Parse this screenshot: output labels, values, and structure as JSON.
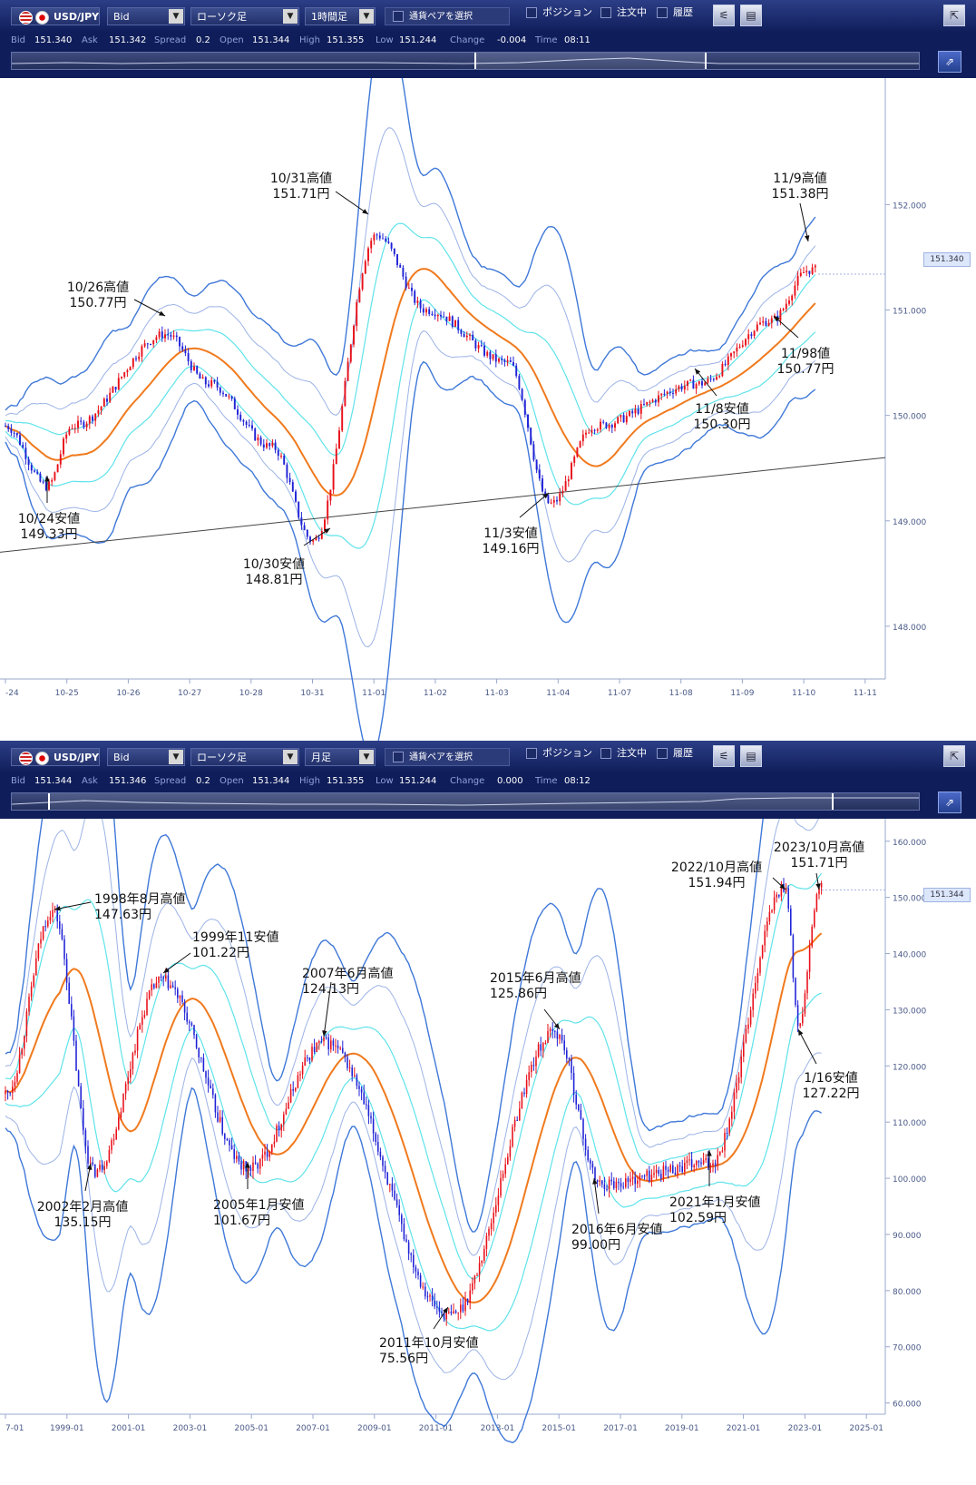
{
  "panels": [
    {
      "pair": "USD/JPY",
      "price_type": "Bid",
      "chart_type": "ローソク足",
      "timeframe": "1時間足",
      "select_pair_label": "通貨ペアを選択",
      "position_label": "ポジション",
      "order_label": "注文中",
      "history_label": "履歴",
      "info": [
        {
          "label": "Bid",
          "value": "151.340"
        },
        {
          "label": "Ask",
          "value": "151.342"
        },
        {
          "label": "Spread",
          "value": "0.2"
        },
        {
          "label": "Open",
          "value": "151.344"
        },
        {
          "label": "High",
          "value": "151.355"
        },
        {
          "label": "Low",
          "value": "151.244"
        },
        {
          "label": "Change",
          "value": "-0.004"
        },
        {
          "label": "Time",
          "value": "08:11"
        }
      ],
      "current_price_label": "151.340"
    },
    {
      "pair": "USD/JPY",
      "price_type": "Bid",
      "chart_type": "ローソク足",
      "timeframe": "月足",
      "select_pair_label": "通貨ペアを選択",
      "position_label": "ポジション",
      "order_label": "注文中",
      "history_label": "履歴",
      "info": [
        {
          "label": "Bid",
          "value": "151.344"
        },
        {
          "label": "Ask",
          "value": "151.346"
        },
        {
          "label": "Spread",
          "value": "0.2"
        },
        {
          "label": "Open",
          "value": "151.344"
        },
        {
          "label": "High",
          "value": "151.355"
        },
        {
          "label": "Low",
          "value": "151.244"
        },
        {
          "label": "Change",
          "value": "0.000"
        },
        {
          "label": "Time",
          "value": "08:12"
        }
      ],
      "current_price_label": "151.344"
    }
  ],
  "colors": {
    "toolbar": "#1a2a6c",
    "candle_up": "#e8101a",
    "candle_down": "#1f22d6",
    "ma": "#f07a1e",
    "band1": "#5fe3ea",
    "band2": "#9cb3e6",
    "band3": "#3f78d8"
  },
  "chart_data": [
    {
      "type": "candlestick",
      "title": "",
      "x_ticks": [
        "-24",
        "10-25",
        "10-26",
        "10-27",
        "10-28",
        "10-31",
        "11-01",
        "11-02",
        "11-03",
        "11-04",
        "11-07",
        "11-08",
        "11-09",
        "11-10",
        "11-11"
      ],
      "y_ticks": [
        "148.000",
        "149.000",
        "150.000",
        "151.000",
        "152.000"
      ],
      "ylim": [
        147.5,
        153.2
      ],
      "current_price": 151.34,
      "trendline": [
        {
          "x": "-24",
          "y": 148.7
        },
        {
          "x": "11-11",
          "y": 149.6
        }
      ],
      "close_path": [
        {
          "x": "-24",
          "y": 149.9
        },
        {
          "x": "10-24",
          "y": 149.33
        },
        {
          "x": "10-25",
          "y": 149.9
        },
        {
          "x": "10-26",
          "y": 150.77
        },
        {
          "x": "10-27",
          "y": 150.3
        },
        {
          "x": "10-28",
          "y": 149.7
        },
        {
          "x": "10-31",
          "y": 148.81
        },
        {
          "x": "11-01",
          "y": 151.71
        },
        {
          "x": "11-02",
          "y": 151.0
        },
        {
          "x": "11-03",
          "y": 150.5
        },
        {
          "x": "11-04",
          "y": 149.16
        },
        {
          "x": "11-07",
          "y": 149.9
        },
        {
          "x": "11-08",
          "y": 150.3
        },
        {
          "x": "11-09",
          "y": 150.9
        },
        {
          "x": "11-10",
          "y": 151.38
        }
      ],
      "annotations": [
        {
          "x": "10-24",
          "y": 149.33,
          "lines": [
            "10/24安値",
            "149.33円"
          ]
        },
        {
          "x": "10-26",
          "y": 150.77,
          "lines": [
            "10/26高値",
            "150.77円"
          ]
        },
        {
          "x": "10-30",
          "y": 148.81,
          "lines": [
            "10/30安値",
            "148.81円"
          ]
        },
        {
          "x": "10-31",
          "y": 151.71,
          "lines": [
            "10/31高値",
            "151.71円"
          ]
        },
        {
          "x": "11-03",
          "y": 149.16,
          "lines": [
            "11/3安値",
            "149.16円"
          ]
        },
        {
          "x": "11-08",
          "y": 150.3,
          "lines": [
            "11/8安値",
            "150.30円"
          ]
        },
        {
          "x": "11-09",
          "y": 150.77,
          "lines": [
            "11/98値",
            "150.77円"
          ]
        },
        {
          "x": "11-09",
          "y": 151.38,
          "lines": [
            "11/9高値",
            "151.38円"
          ]
        }
      ]
    },
    {
      "type": "candlestick",
      "title": "",
      "x_ticks": [
        "7-01",
        "1999-01",
        "2001-01",
        "2003-01",
        "2005-01",
        "2007-01",
        "2009-01",
        "2011-01",
        "2013-01",
        "2015-01",
        "2017-01",
        "2019-01",
        "2021-01",
        "2023-01",
        "2025-01"
      ],
      "y_ticks": [
        "60.000",
        "70.000",
        "80.000",
        "90.000",
        "100.000",
        "110.000",
        "120.000",
        "130.000",
        "140.000",
        "150.000",
        "160.000"
      ],
      "ylim": [
        58,
        164
      ],
      "current_price": 151.344,
      "close_path": [
        {
          "x": "1997-01",
          "y": 115
        },
        {
          "x": "1998-08",
          "y": 147.63
        },
        {
          "x": "1999-11",
          "y": 101.22
        },
        {
          "x": "2002-02",
          "y": 135.15
        },
        {
          "x": "2005-01",
          "y": 101.67
        },
        {
          "x": "2007-06",
          "y": 124.13
        },
        {
          "x": "2011-10",
          "y": 75.56
        },
        {
          "x": "2015-06",
          "y": 125.86
        },
        {
          "x": "2016-06",
          "y": 99.0
        },
        {
          "x": "2021-01",
          "y": 102.59
        },
        {
          "x": "2022-10",
          "y": 151.94
        },
        {
          "x": "2023-01",
          "y": 127.22
        },
        {
          "x": "2023-10",
          "y": 151.71
        }
      ],
      "annotations": [
        {
          "x": "1998-08",
          "y": 147.63,
          "lines": [
            "1998年8月高値",
            "147.63円"
          ]
        },
        {
          "x": "1999-11",
          "y": 101.22,
          "lines": [
            "1999年11安値",
            "101.22円"
          ]
        },
        {
          "x": "2002-02",
          "y": 135.15,
          "lines": [
            "2002年2月高値",
            "135.15円"
          ]
        },
        {
          "x": "2005-01",
          "y": 101.67,
          "lines": [
            "2005年1月安値",
            "101.67円"
          ]
        },
        {
          "x": "2007-06",
          "y": 124.13,
          "lines": [
            "2007年6月高値",
            "124.13円"
          ]
        },
        {
          "x": "2011-10",
          "y": 75.56,
          "lines": [
            "2011年10月安値",
            "75.56円"
          ]
        },
        {
          "x": "2015-06",
          "y": 125.86,
          "lines": [
            "2015年6月高値",
            "125.86円"
          ]
        },
        {
          "x": "2016-06",
          "y": 99.0,
          "lines": [
            "2016年6月安値",
            "99.00円"
          ]
        },
        {
          "x": "2021-01",
          "y": 102.59,
          "lines": [
            "2021年1月安値",
            "102.59円"
          ]
        },
        {
          "x": "2022-10",
          "y": 151.94,
          "lines": [
            "2022/10月高値",
            "151.94円"
          ]
        },
        {
          "x": "2023-01",
          "y": 127.22,
          "lines": [
            "1/16安値",
            "127.22円"
          ]
        },
        {
          "x": "2023-10",
          "y": 151.71,
          "lines": [
            "2023/10月高値",
            "151.71円"
          ]
        }
      ]
    }
  ]
}
